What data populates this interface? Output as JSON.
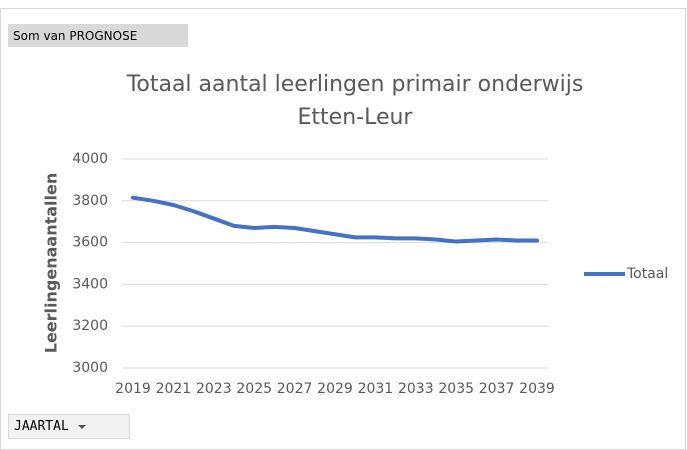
{
  "field_button": "Som van PROGNOSE",
  "filter_button": "JAARTAL",
  "chart_data": {
    "type": "line",
    "title": "Totaal aantal leerlingen primair onderwijs Etten-Leur",
    "y_label": "Leerlingenaantallen",
    "x": [
      2019,
      2020,
      2021,
      2022,
      2023,
      2024,
      2025,
      2026,
      2027,
      2028,
      2029,
      2030,
      2031,
      2032,
      2033,
      2034,
      2035,
      2036,
      2037,
      2038,
      2039
    ],
    "series": [
      {
        "name": "Totaal",
        "color": "#4472c4",
        "values": [
          3815,
          3800,
          3780,
          3750,
          3715,
          3680,
          3670,
          3675,
          3670,
          3655,
          3640,
          3625,
          3625,
          3620,
          3620,
          3615,
          3605,
          3610,
          3615,
          3610,
          3610
        ]
      }
    ],
    "xlim": [
      2019,
      2039
    ],
    "xticks": [
      2019,
      2021,
      2023,
      2025,
      2027,
      2029,
      2031,
      2033,
      2035,
      2037,
      2039
    ],
    "ylim": [
      3000,
      4000
    ],
    "yticks": [
      3000,
      3200,
      3400,
      3600,
      3800,
      4000
    ],
    "grid": true,
    "legend": "right"
  }
}
